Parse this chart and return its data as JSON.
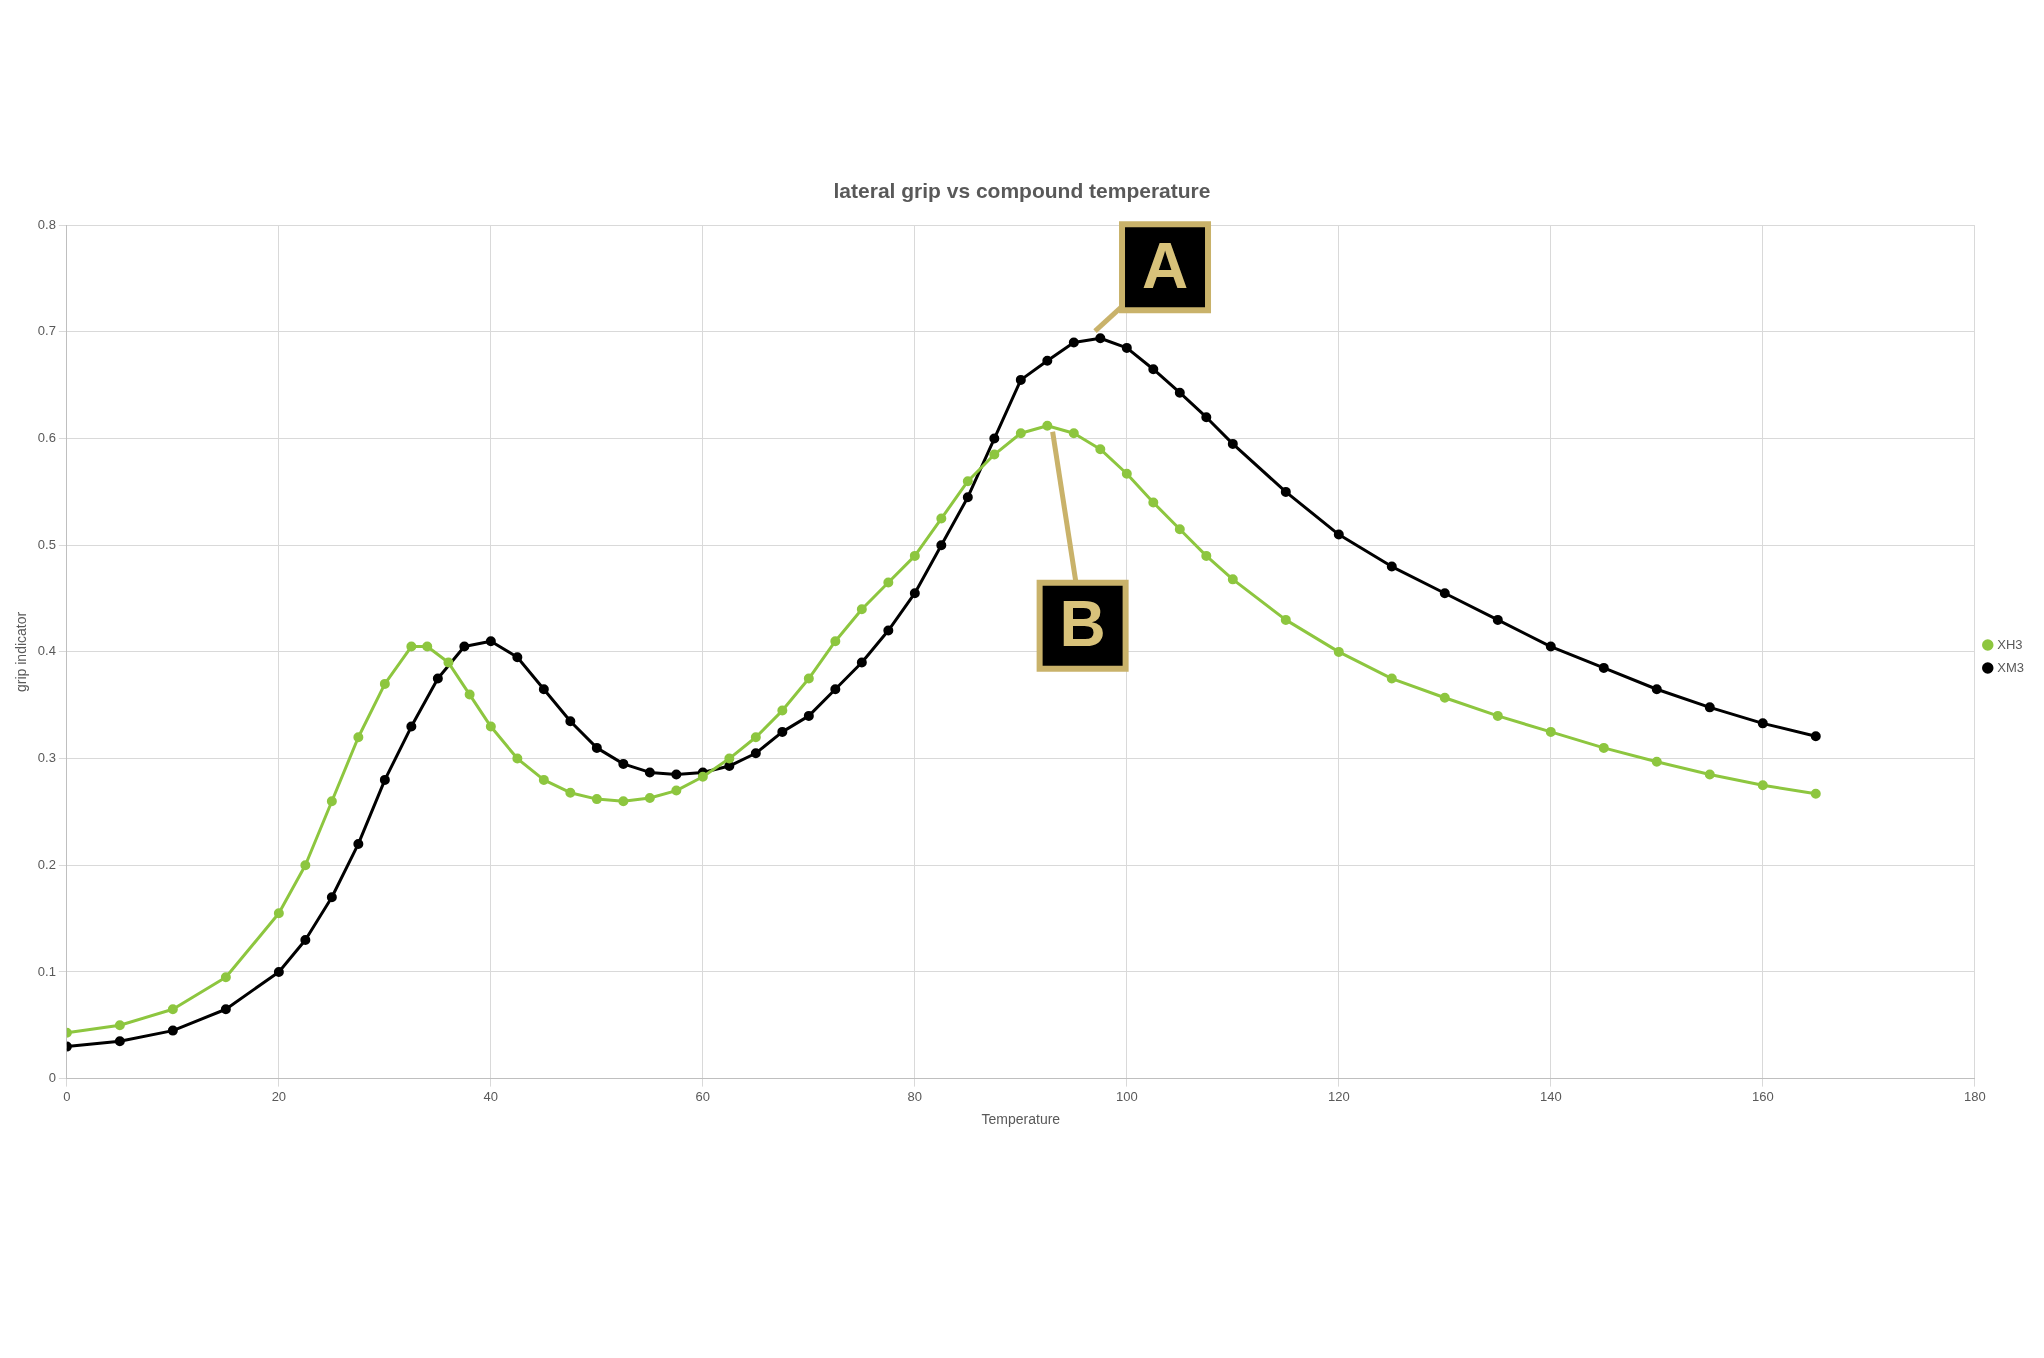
{
  "chart_data": {
    "type": "line",
    "title": "lateral grip vs compound temperature",
    "xlabel": "Temperature",
    "ylabel": "grip indicator",
    "xlim": [
      0,
      180
    ],
    "xticks": [
      0,
      20,
      40,
      60,
      80,
      100,
      120,
      140,
      160,
      180
    ],
    "ylim": [
      0,
      0.8
    ],
    "yticks": [
      0,
      0.1,
      0.2,
      0.3,
      0.4,
      0.5,
      0.6,
      0.7,
      0.8
    ],
    "grid": true,
    "legend": "right",
    "marker": "circle",
    "line_style": "solid",
    "annotations": [
      {
        "text": "A",
        "x": 97,
        "y": 0.695
      },
      {
        "text": "B",
        "x": 93,
        "y": 0.612
      }
    ],
    "series": [
      {
        "name": "XH3",
        "color": "#8dc63f",
        "x": [
          0,
          5,
          10,
          15,
          20,
          22.5,
          25,
          27.5,
          30,
          32.5,
          34,
          36,
          38,
          40,
          42.5,
          45,
          47.5,
          50,
          52.5,
          55,
          57.5,
          60,
          62.5,
          65,
          67.5,
          70,
          72.5,
          75,
          77.5,
          80,
          82.5,
          85,
          87.5,
          90,
          92.5,
          95,
          97.5,
          100,
          102.5,
          105,
          107.5,
          110,
          115,
          120,
          125,
          130,
          135,
          140,
          145,
          150,
          155,
          160,
          165
        ],
        "values": [
          0.043,
          0.05,
          0.065,
          0.095,
          0.155,
          0.2,
          0.26,
          0.32,
          0.37,
          0.405,
          0.405,
          0.39,
          0.36,
          0.33,
          0.3,
          0.28,
          0.268,
          0.262,
          0.26,
          0.263,
          0.27,
          0.283,
          0.3,
          0.32,
          0.345,
          0.375,
          0.41,
          0.44,
          0.465,
          0.49,
          0.525,
          0.56,
          0.585,
          0.605,
          0.612,
          0.605,
          0.59,
          0.567,
          0.54,
          0.515,
          0.49,
          0.468,
          0.43,
          0.4,
          0.375,
          0.357,
          0.34,
          0.325,
          0.31,
          0.297,
          0.285,
          0.275,
          0.267
        ]
      },
      {
        "name": "XM3",
        "color": "#000000",
        "x": [
          0,
          5,
          10,
          15,
          20,
          22.5,
          25,
          27.5,
          30,
          32.5,
          35,
          37.5,
          40,
          42.5,
          45,
          47.5,
          50,
          52.5,
          55,
          57.5,
          60,
          62.5,
          65,
          67.5,
          70,
          72.5,
          75,
          77.5,
          80,
          82.5,
          85,
          87.5,
          90,
          92.5,
          95,
          97.5,
          100,
          102.5,
          105,
          107.5,
          110,
          115,
          120,
          125,
          130,
          135,
          140,
          145,
          150,
          155,
          160,
          165
        ],
        "values": [
          0.03,
          0.035,
          0.045,
          0.065,
          0.1,
          0.13,
          0.17,
          0.22,
          0.28,
          0.33,
          0.375,
          0.405,
          0.41,
          0.395,
          0.365,
          0.335,
          0.31,
          0.295,
          0.287,
          0.285,
          0.287,
          0.293,
          0.305,
          0.325,
          0.34,
          0.365,
          0.39,
          0.42,
          0.455,
          0.5,
          0.545,
          0.6,
          0.655,
          0.673,
          0.69,
          0.694,
          0.685,
          0.665,
          0.643,
          0.62,
          0.595,
          0.55,
          0.51,
          0.48,
          0.455,
          0.43,
          0.405,
          0.385,
          0.365,
          0.348,
          0.333,
          0.321
        ]
      }
    ]
  }
}
